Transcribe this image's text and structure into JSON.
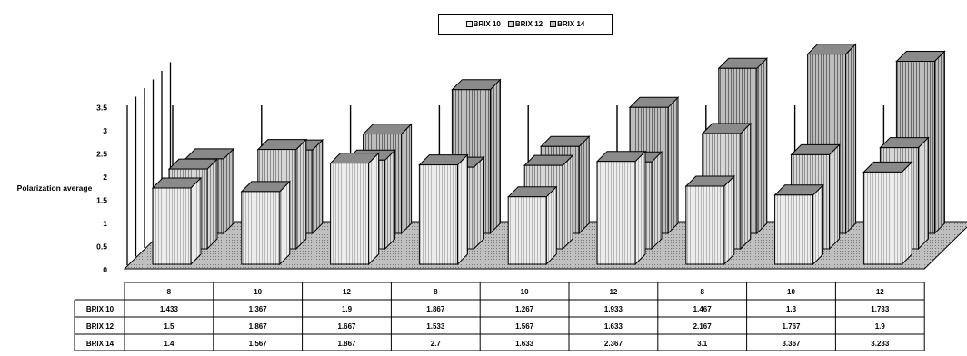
{
  "chart_data": {
    "type": "bar",
    "title": "",
    "ylabel": "Polarization average",
    "xlabel": "",
    "ylim": [
      0,
      3.5
    ],
    "yticks": [
      "0",
      "0.5",
      "1",
      "1.5",
      "2",
      "2.5",
      "3",
      "3.5"
    ],
    "categories": [
      "8",
      "10",
      "12",
      "8",
      "10",
      "12",
      "8",
      "10",
      "12"
    ],
    "series": [
      {
        "name": "BRIX 10",
        "values": [
          1.433,
          1.367,
          1.9,
          1.867,
          1.267,
          1.933,
          1.467,
          1.3,
          1.733
        ],
        "labels": [
          "1.433",
          "1.367",
          "1.9",
          "1.867",
          "1.267",
          "1.933",
          "1.467",
          "1.3",
          "1.733"
        ]
      },
      {
        "name": "BRIX 12",
        "values": [
          1.5,
          1.867,
          1.667,
          1.533,
          1.567,
          1.633,
          2.167,
          1.767,
          1.9
        ],
        "labels": [
          "1.5",
          "1.867",
          "1.667",
          "1.533",
          "1.567",
          "1.633",
          "2.167",
          "1.767",
          "1.9"
        ]
      },
      {
        "name": "BRIX 14",
        "values": [
          1.4,
          1.567,
          1.867,
          2.7,
          1.633,
          2.367,
          3.1,
          3.367,
          3.233
        ],
        "labels": [
          "1.4",
          "1.567",
          "1.867",
          "2.7",
          "1.633",
          "2.367",
          "3.1",
          "3.367",
          "3.233"
        ]
      }
    ],
    "legend_position": "top-center",
    "data_table": true,
    "grid": true,
    "three_d": true,
    "colors": {
      "series_front": "#ececec",
      "series_front_stripe": "#b8b8b8",
      "series_mid": "#d6d6d6",
      "series_mid_stripe": "#8a8a8a",
      "series_back": "#bdbdbd",
      "series_back_stripe": "#6a6a6a",
      "floor": "#9a9a9a",
      "background": "#ffffff"
    }
  }
}
